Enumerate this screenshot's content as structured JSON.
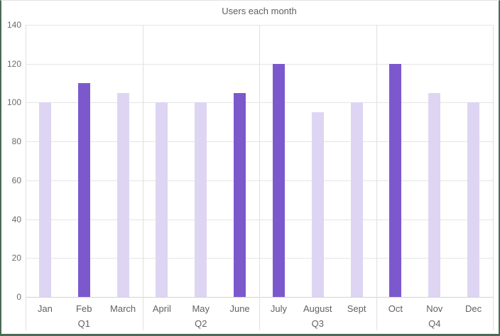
{
  "window": {
    "border_color": "#4a6a55",
    "background": "#ffffff"
  },
  "chart_data": {
    "type": "bar",
    "title": "Users each month",
    "categories": [
      "Jan",
      "Feb",
      "March",
      "April",
      "May",
      "June",
      "July",
      "August",
      "Sept",
      "Oct",
      "Nov",
      "Dec"
    ],
    "values": [
      100,
      110,
      105,
      100,
      100,
      105,
      120,
      95,
      100,
      120,
      105,
      100
    ],
    "groups": [
      {
        "label": "Q1",
        "span": 3
      },
      {
        "label": "Q2",
        "span": 3
      },
      {
        "label": "Q3",
        "span": 3
      },
      {
        "label": "Q4",
        "span": 3
      }
    ],
    "highlighted_categories": [
      "Feb",
      "June",
      "July",
      "Oct"
    ],
    "xlabel": "",
    "ylabel": "",
    "ylim": [
      0,
      140
    ],
    "yticks": [
      0,
      20,
      40,
      60,
      80,
      100,
      120,
      140
    ],
    "grid": true,
    "legend": "none",
    "colors": {
      "bar_default": "#ded5f3",
      "bar_highlight": "#7c58cd",
      "gridline": "#e5e5e5",
      "axis_line": "#d4d4d4",
      "group_separator": "#e0e0e0",
      "tick_label_color": "#6b6b6b",
      "category_label_color": "#616161",
      "title_color": "#5f5f5f"
    }
  }
}
